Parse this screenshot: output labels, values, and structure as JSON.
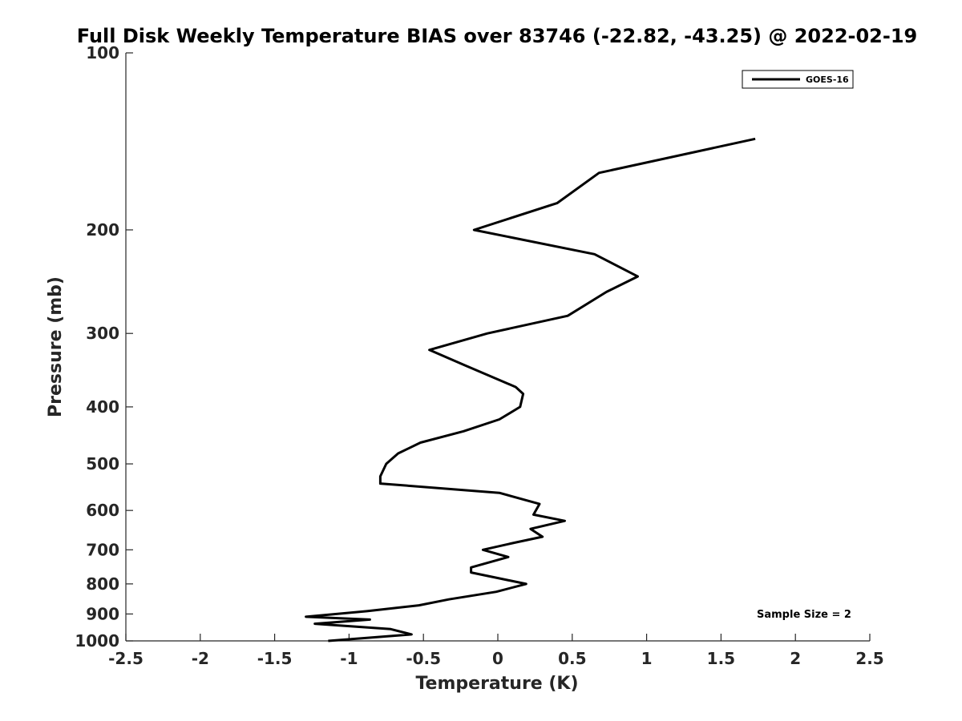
{
  "chart_data": {
    "type": "line",
    "title": "Full Disk Weekly Temperature BIAS over 83746 (-22.82, -43.25) @ 2022-02-19",
    "xlabel": "Temperature (K)",
    "ylabel": "Pressure (mb)",
    "xlim": [
      -2.5,
      2.5
    ],
    "ylim": [
      1000,
      100
    ],
    "yscale": "log",
    "grid": false,
    "legend_position": "top-right",
    "x_ticks": [
      -2.5,
      -2,
      -1.5,
      -1,
      -0.5,
      0,
      0.5,
      1,
      1.5,
      2,
      2.5
    ],
    "x_tick_labels": [
      "-2.5",
      "-2",
      "-1.5",
      "-1",
      "-0.5",
      "0",
      "0.5",
      "1",
      "1.5",
      "2",
      "2.5"
    ],
    "y_ticks": [
      100,
      200,
      300,
      400,
      500,
      600,
      700,
      800,
      900,
      1000
    ],
    "y_tick_labels": [
      "100",
      "200",
      "300",
      "400",
      "500",
      "600",
      "700",
      "800",
      "900",
      "1000"
    ],
    "series": [
      {
        "name": "GOES-16",
        "color": "#000000",
        "points": [
          {
            "x": 1.73,
            "p": 140
          },
          {
            "x": 0.68,
            "p": 160
          },
          {
            "x": 0.4,
            "p": 180
          },
          {
            "x": -0.16,
            "p": 200
          },
          {
            "x": 0.65,
            "p": 220
          },
          {
            "x": 0.94,
            "p": 240
          },
          {
            "x": 0.73,
            "p": 255
          },
          {
            "x": 0.47,
            "p": 280
          },
          {
            "x": -0.07,
            "p": 300
          },
          {
            "x": -0.46,
            "p": 320
          },
          {
            "x": -0.22,
            "p": 340
          },
          {
            "x": 0.12,
            "p": 370
          },
          {
            "x": 0.17,
            "p": 380
          },
          {
            "x": 0.15,
            "p": 400
          },
          {
            "x": 0.01,
            "p": 420
          },
          {
            "x": -0.23,
            "p": 440
          },
          {
            "x": -0.52,
            "p": 460
          },
          {
            "x": -0.67,
            "p": 480
          },
          {
            "x": -0.75,
            "p": 500
          },
          {
            "x": -0.79,
            "p": 525
          },
          {
            "x": -0.79,
            "p": 540
          },
          {
            "x": 0.01,
            "p": 560
          },
          {
            "x": 0.28,
            "p": 585
          },
          {
            "x": 0.24,
            "p": 610
          },
          {
            "x": 0.45,
            "p": 625
          },
          {
            "x": 0.22,
            "p": 645
          },
          {
            "x": 0.3,
            "p": 665
          },
          {
            "x": 0.12,
            "p": 680
          },
          {
            "x": -0.1,
            "p": 700
          },
          {
            "x": 0.07,
            "p": 720
          },
          {
            "x": -0.18,
            "p": 750
          },
          {
            "x": -0.18,
            "p": 765
          },
          {
            "x": 0.19,
            "p": 800
          },
          {
            "x": -0.01,
            "p": 825
          },
          {
            "x": -0.33,
            "p": 850
          },
          {
            "x": -0.53,
            "p": 870
          },
          {
            "x": -0.88,
            "p": 890
          },
          {
            "x": -1.29,
            "p": 910
          },
          {
            "x": -0.86,
            "p": 920
          },
          {
            "x": -1.23,
            "p": 935
          },
          {
            "x": -0.72,
            "p": 955
          },
          {
            "x": -0.58,
            "p": 975
          },
          {
            "x": -1.14,
            "p": 1000
          }
        ]
      }
    ],
    "annotations": [
      {
        "text": "Sample Size = 2",
        "position": "bottom-right"
      }
    ]
  }
}
